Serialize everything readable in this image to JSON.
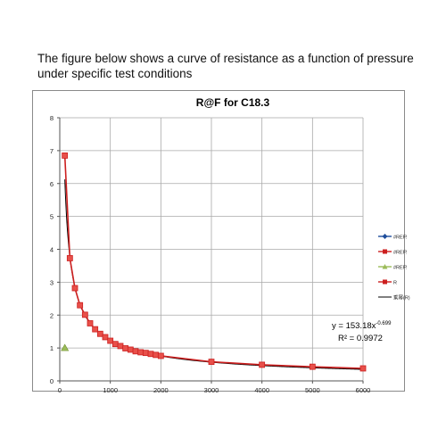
{
  "intro_text": "The figure below shows a curve of resistance as a function of pressure under specific test conditions",
  "chart_data": {
    "type": "line",
    "title": "R@F  for C18.3",
    "xlabel": "",
    "ylabel": "",
    "xlim": [
      0,
      6000
    ],
    "ylim": [
      0,
      8
    ],
    "x_ticks": [
      0,
      1000,
      2000,
      3000,
      4000,
      5000,
      6000
    ],
    "y_ticks": [
      0,
      1,
      2,
      3,
      4,
      5,
      6,
      7,
      8
    ],
    "grid": true,
    "legend_position": "right",
    "series": [
      {
        "name": "R",
        "color": "#cc1f1f",
        "marker_fill": "#e8504a",
        "x": [
          100,
          200,
          300,
          400,
          500,
          600,
          700,
          800,
          900,
          1000,
          1100,
          1200,
          1300,
          1400,
          1500,
          1600,
          1700,
          1800,
          1900,
          2000,
          3000,
          4000,
          5000,
          6000
        ],
        "y": [
          6.85,
          3.73,
          2.82,
          2.3,
          2.01,
          1.75,
          1.57,
          1.43,
          1.33,
          1.22,
          1.12,
          1.06,
          0.99,
          0.95,
          0.9,
          0.87,
          0.85,
          0.82,
          0.79,
          0.76,
          0.58,
          0.49,
          0.43,
          0.38
        ]
      },
      {
        "name": "#REF!",
        "color": "#9bbb59",
        "marker": "triangle",
        "x": [
          100
        ],
        "y": [
          1.0
        ]
      }
    ],
    "legend": [
      {
        "label": "#REF!",
        "color": "#1f4e9c",
        "marker": "diamond"
      },
      {
        "label": "#REF!",
        "color": "#cc1f1f",
        "marker": "square"
      },
      {
        "label": "#REF!",
        "color": "#9bbb59",
        "marker": "triangle"
      },
      {
        "label": "R",
        "color": "#cc1f1f",
        "marker": "square"
      },
      {
        "label": "乘幂(R)",
        "color": "#000000",
        "marker": "line"
      }
    ],
    "trendline": {
      "type": "power",
      "coefficient": 153.18,
      "exponent": -0.699,
      "equation_base": "y = 153.18x",
      "equation_exponent": "-0.699",
      "r_squared_text": "R² = 0.9972"
    }
  }
}
